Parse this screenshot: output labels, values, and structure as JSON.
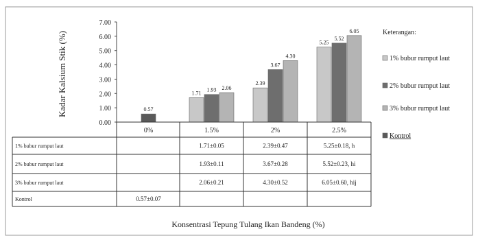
{
  "chart_data": {
    "type": "bar",
    "ylabel": "Kadar Kalsium Stik  (%)",
    "xlabel": "Konsentrasi  Tepung  Tulang Ikan  Bandeng  (%)",
    "ylim": [
      0,
      7
    ],
    "yticks": [
      "0.00",
      "1.00",
      "2.00",
      "3.00",
      "4.00",
      "5.00",
      "6.00",
      "7.00"
    ],
    "categories": [
      "0%",
      "1.5%",
      "2%",
      "2.5%"
    ],
    "series": [
      {
        "name": "1% bubur rumput laut",
        "color": "#c8c8c8",
        "values": [
          null,
          1.71,
          2.39,
          5.25
        ],
        "labels": [
          "",
          "1.71",
          "2.39",
          "5.25"
        ],
        "table": [
          "",
          "1.71±0.05",
          "2.39±0.47",
          "5.25±0.18, h"
        ]
      },
      {
        "name": "2% bubur rumput laut",
        "color": "#6e6e6e",
        "values": [
          null,
          1.93,
          3.67,
          5.52
        ],
        "labels": [
          "",
          "1.93",
          "3.67",
          "5.52"
        ],
        "table": [
          "",
          "1.93±0.11",
          "3.67±0.28",
          "5.52±0.23, hi"
        ]
      },
      {
        "name": "3% bubur rumput laut",
        "color": "#b4b4b4",
        "values": [
          null,
          2.06,
          4.3,
          6.05
        ],
        "labels": [
          "",
          "2.06",
          "4.30",
          "6.05"
        ],
        "table": [
          "",
          "2.06±0.21",
          "4.30±0.52",
          "6.05±0.60, hij"
        ]
      },
      {
        "name": "Kontrol",
        "color": "#5a5a5a",
        "values": [
          0.57,
          null,
          null,
          null
        ],
        "labels": [
          "0.57",
          "",
          "",
          ""
        ],
        "table": [
          "0.57±0.07",
          "",
          "",
          ""
        ]
      }
    ],
    "legend": {
      "title": "Keterangan:",
      "position": "right"
    },
    "grid": false
  }
}
